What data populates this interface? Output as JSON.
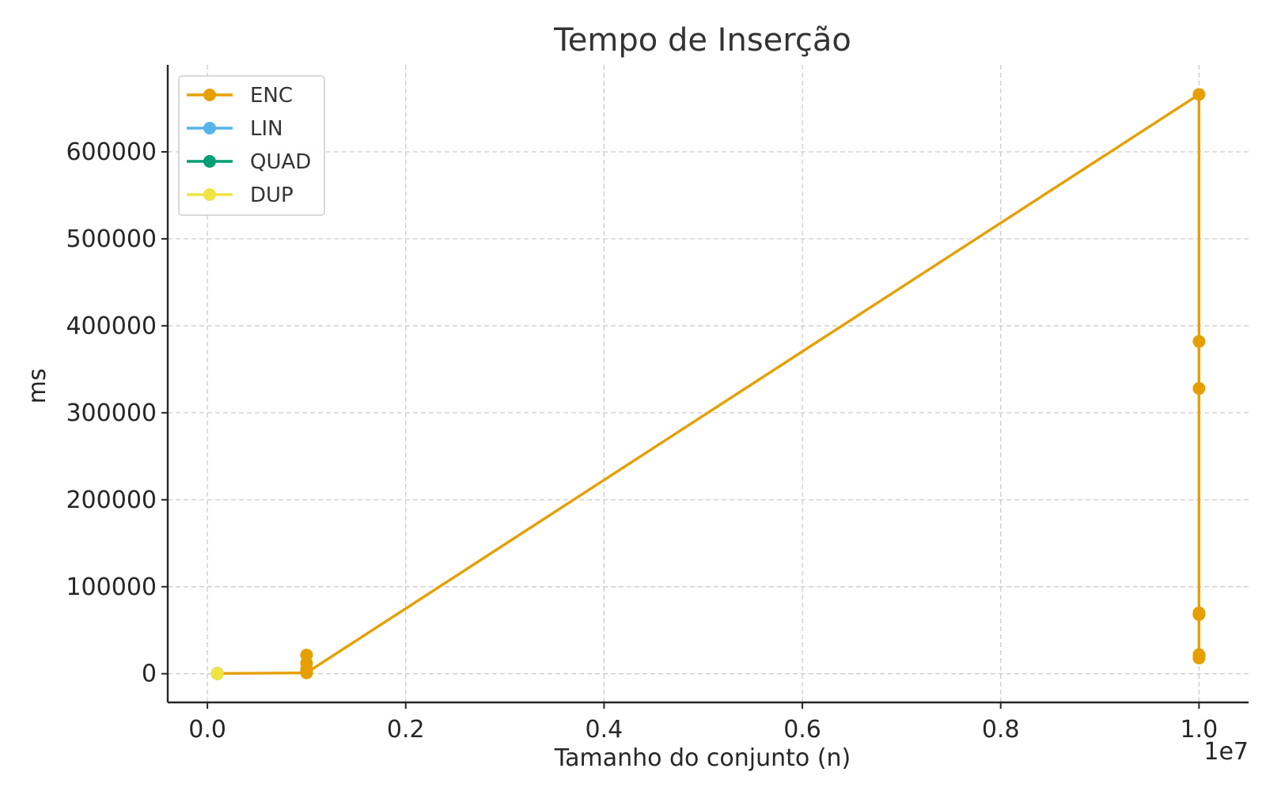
{
  "chart_data": {
    "type": "line",
    "title": "Tempo de Inserção",
    "xlabel": "Tamanho do conjunto (n)",
    "ylabel": "ms",
    "x_offset_label": "1e7",
    "xlim": [
      -0.04,
      1.05
    ],
    "ylim": [
      -33000,
      700000
    ],
    "x_ticks": [
      0.0,
      0.2,
      0.4,
      0.6,
      0.8,
      1.0
    ],
    "x_tick_labels": [
      "0.0",
      "0.2",
      "0.4",
      "0.6",
      "0.8",
      "1.0"
    ],
    "y_ticks": [
      0,
      100000,
      200000,
      300000,
      400000,
      500000,
      600000
    ],
    "y_tick_labels": [
      "0",
      "100000",
      "200000",
      "300000",
      "400000",
      "500000",
      "600000"
    ],
    "grid": true,
    "legend_position": "top-left",
    "series": [
      {
        "name": "ENC",
        "color": "#E69F00",
        "x": [
          0.01,
          0.01,
          0.01,
          0.01,
          0.01,
          0.01,
          0.1,
          0.1,
          0.1,
          0.1,
          0.1,
          0.1,
          1.0,
          1.0,
          1.0,
          1.0,
          1.0,
          1.0,
          1.0,
          1.0
        ],
        "y": [
          100,
          300,
          150,
          400,
          200,
          250,
          1000,
          12000,
          21500,
          5000,
          2000,
          1000,
          666000,
          382000,
          328000,
          70000,
          68000,
          22000,
          18000,
          20000
        ]
      },
      {
        "name": "LIN",
        "color": "#56B4E9",
        "x": [
          0.01
        ],
        "y": [
          0
        ]
      },
      {
        "name": "QUAD",
        "color": "#009E73",
        "x": [
          0.01
        ],
        "y": [
          0
        ]
      },
      {
        "name": "DUP",
        "color": "#F0E442",
        "x": [
          0.01,
          0.01
        ],
        "y": [
          0,
          0
        ]
      }
    ]
  }
}
